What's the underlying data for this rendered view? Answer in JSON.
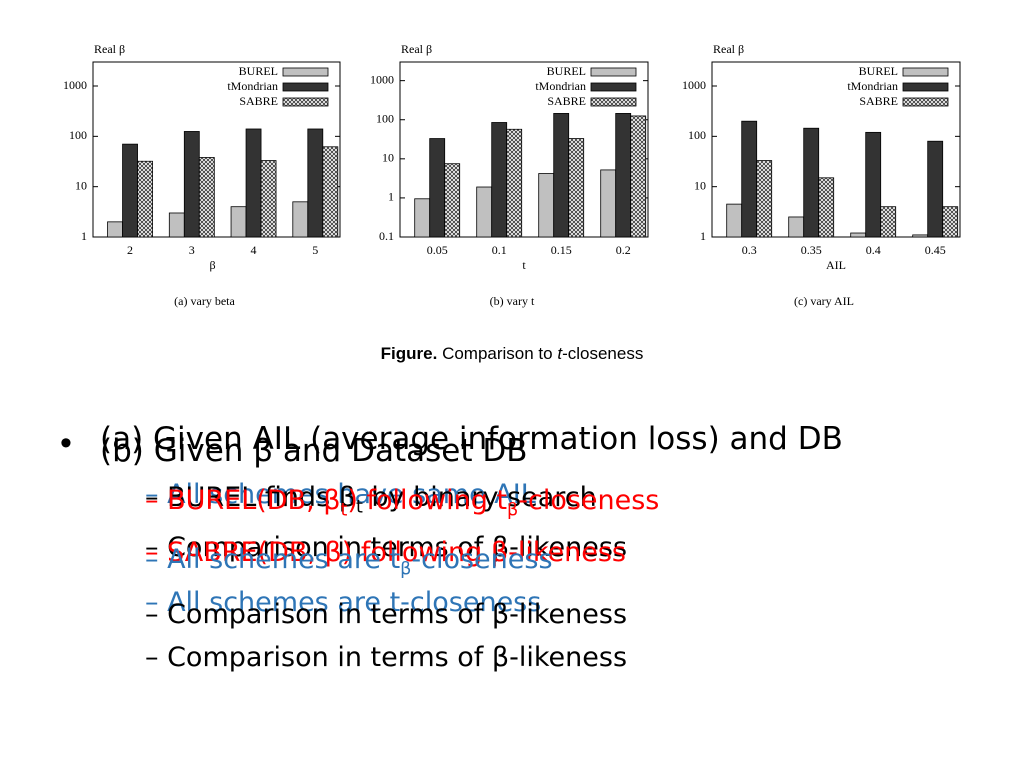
{
  "chart_data": [
    {
      "type": "bar",
      "yscale": "log",
      "ylabel": "Real β",
      "xlabel": "β",
      "caption": "(a) vary beta",
      "categories": [
        "2",
        "3",
        "4",
        "5"
      ],
      "ylim": [
        1,
        3000
      ],
      "yticks": [
        1,
        10,
        100,
        1000
      ],
      "series": [
        {
          "name": "BUREL",
          "color": "#c0c0c0",
          "values": [
            2,
            3,
            4,
            5
          ]
        },
        {
          "name": "tMondrian",
          "color": "#333333",
          "values": [
            70,
            125,
            140,
            140
          ]
        },
        {
          "name": "SABRE",
          "color": "#ffffff",
          "pattern": "crosshatch",
          "values": [
            32,
            38,
            33,
            62
          ]
        }
      ]
    },
    {
      "type": "bar",
      "yscale": "log",
      "ylabel": "Real β",
      "xlabel": "t",
      "caption": "(b) vary t",
      "categories": [
        "0.05",
        "0.1",
        "0.15",
        "0.2"
      ],
      "ylim": [
        0.1,
        3000
      ],
      "yticks": [
        0.1,
        1,
        10,
        100,
        1000
      ],
      "series": [
        {
          "name": "BUREL",
          "color": "#c0c0c0",
          "values": [
            0.95,
            1.9,
            4.2,
            5.2
          ]
        },
        {
          "name": "tMondrian",
          "color": "#333333",
          "values": [
            33,
            85,
            145,
            145
          ]
        },
        {
          "name": "SABRE",
          "color": "#ffffff",
          "pattern": "crosshatch",
          "values": [
            7.5,
            57,
            33,
            125
          ]
        }
      ]
    },
    {
      "type": "bar",
      "yscale": "log",
      "ylabel": "Real β",
      "xlabel": "AIL",
      "caption": "(c) vary AIL",
      "categories": [
        "0.3",
        "0.35",
        "0.4",
        "0.45"
      ],
      "ylim": [
        1,
        3000
      ],
      "yticks": [
        1,
        10,
        100,
        1000
      ],
      "series": [
        {
          "name": "BUREL",
          "color": "#c0c0c0",
          "values": [
            4.5,
            2.5,
            1.2,
            1.1
          ]
        },
        {
          "name": "tMondrian",
          "color": "#333333",
          "values": [
            200,
            145,
            120,
            80
          ]
        },
        {
          "name": "SABRE",
          "color": "#ffffff",
          "pattern": "crosshatch",
          "values": [
            33,
            15,
            4,
            4
          ]
        }
      ]
    }
  ],
  "figure_caption": {
    "label": "Figure.",
    "parts": [
      "Comparison to ",
      "t",
      "-closeness"
    ]
  },
  "bullet": "•",
  "lines": [
    {
      "color": "#000000",
      "segments": [
        {
          "text": "(a) Given AIL (average information loss) and DB"
        }
      ]
    },
    {
      "color": "#000000",
      "segments": [
        {
          "text": "(b) Given β and Dataset DB"
        }
      ]
    },
    {
      "color": "#2e75b6",
      "segments": [
        {
          "text": "– All schemes have same AIL"
        }
      ]
    },
    {
      "color": "#000000",
      "segments": [
        {
          "text": "– BUREL finds β"
        },
        {
          "sub": "t"
        },
        {
          "text": " by binary search"
        }
      ]
    },
    {
      "color": "#ff0000",
      "segments": [
        {
          "text": "– BUREL(DB, β"
        },
        {
          "sub": "t"
        },
        {
          "text": ") following t"
        },
        {
          "sub": "β"
        },
        {
          "text": "-closeness"
        }
      ]
    },
    {
      "color": "#000000",
      "segments": [
        {
          "text": "– Comparison in terms of β-likeness"
        }
      ]
    },
    {
      "color": "#ff0000",
      "segments": [
        {
          "text": "– SABRE(DB, β) following β-likeness"
        }
      ]
    },
    {
      "color": "#2e75b6",
      "segments": [
        {
          "text": "– All schemes are t"
        },
        {
          "sub": "β"
        },
        {
          "text": "-closeness"
        }
      ]
    },
    {
      "color": "#2e75b6",
      "segments": [
        {
          "text": "– All schemes are t-closeness"
        }
      ]
    },
    {
      "color": "#000000",
      "segments": [
        {
          "text": "– Comparison in terms of β-likeness"
        }
      ]
    },
    {
      "color": "#000000",
      "segments": [
        {
          "text": "– Comparison in terms of β-likeness"
        }
      ]
    }
  ]
}
